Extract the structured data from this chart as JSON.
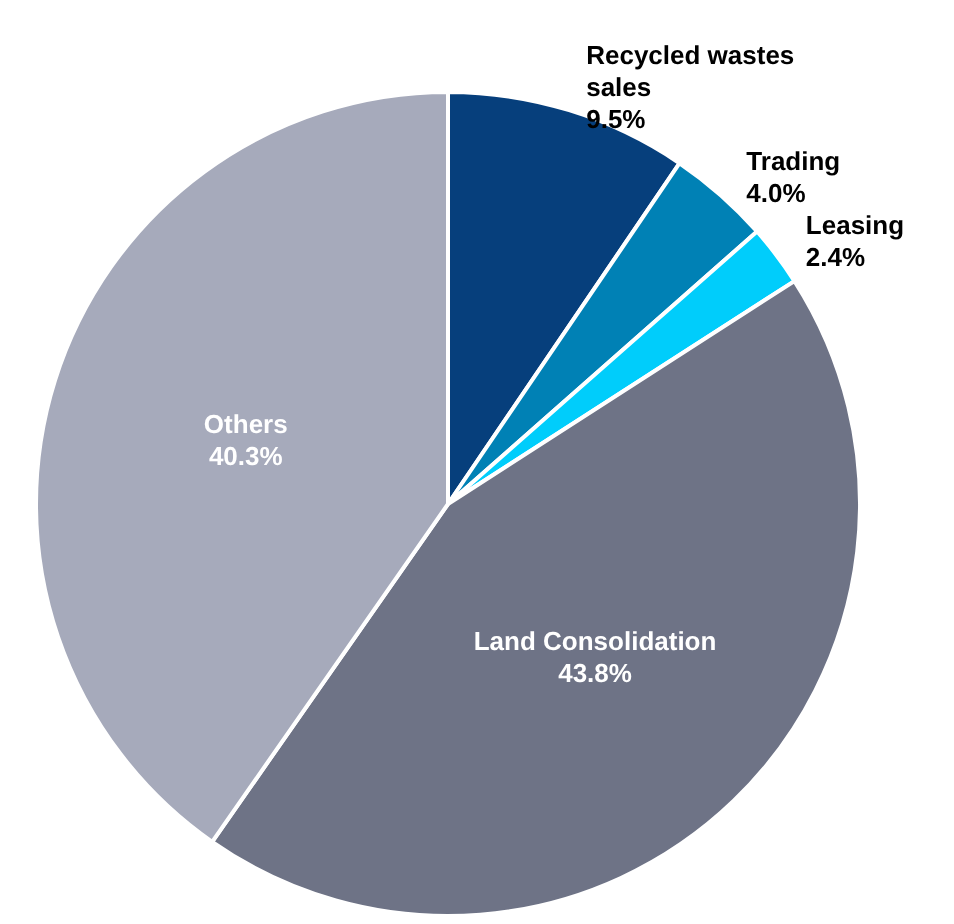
{
  "chart_data": {
    "type": "pie",
    "categories": [
      "Recycled wastes sales",
      "Trading",
      "Leasing",
      "Land Consolidation",
      "Others"
    ],
    "values": [
      9.5,
      4.0,
      2.4,
      43.8,
      40.3
    ],
    "value_labels": [
      "9.5%",
      "4.0%",
      "2.4%",
      "43.8%",
      "40.3%"
    ],
    "colors": [
      "#063f7c",
      "#0081b5",
      "#00cdfb",
      "#6e7386",
      "#a6aabb"
    ],
    "legend": false
  }
}
